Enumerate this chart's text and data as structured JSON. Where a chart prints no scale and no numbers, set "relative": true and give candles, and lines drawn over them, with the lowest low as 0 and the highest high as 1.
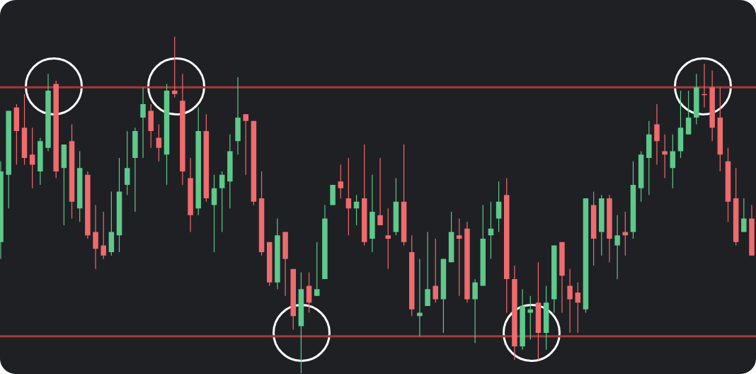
{
  "chart_data": {
    "type": "candlestick",
    "relative": true,
    "categories": [
      null,
      null,
      null,
      null,
      null,
      null,
      null,
      null,
      null,
      null,
      null,
      null,
      null,
      null,
      null,
      null,
      null,
      null,
      null,
      null,
      null,
      null,
      null,
      null,
      null,
      null,
      null,
      null,
      null,
      null,
      null,
      null,
      null,
      null,
      null,
      null,
      null,
      null,
      null,
      null,
      null,
      null,
      null,
      null,
      null,
      null,
      null,
      null,
      null,
      null,
      null,
      null,
      null,
      null,
      null,
      null,
      null,
      null,
      null,
      null,
      null,
      null,
      null,
      null,
      null,
      null,
      null,
      null,
      null,
      null,
      null,
      null,
      null,
      null,
      null,
      null,
      null,
      null,
      null,
      null,
      null,
      null,
      null,
      null,
      null,
      null,
      null,
      null,
      null,
      null,
      null,
      null,
      null,
      null,
      null,
      null
    ],
    "ohlc": [
      [
        0.39,
        0.63,
        0.34,
        0.6
      ],
      [
        0.59,
        0.78,
        0.49,
        0.78
      ],
      [
        0.79,
        0.8,
        0.62,
        0.72
      ],
      [
        0.73,
        0.83,
        0.62,
        0.64
      ],
      [
        0.65,
        0.73,
        0.55,
        0.62
      ],
      [
        0.6,
        0.7,
        0.56,
        0.69
      ],
      [
        0.67,
        0.89,
        0.66,
        0.84
      ],
      [
        0.86,
        0.87,
        0.58,
        0.6
      ],
      [
        0.61,
        0.68,
        0.44,
        0.68
      ],
      [
        0.69,
        0.74,
        0.46,
        0.51
      ],
      [
        0.49,
        0.66,
        0.45,
        0.61
      ],
      [
        0.59,
        0.6,
        0.4,
        0.41
      ],
      [
        0.42,
        0.5,
        0.31,
        0.37
      ],
      [
        0.38,
        0.48,
        0.34,
        0.35
      ],
      [
        0.36,
        0.54,
        0.35,
        0.42
      ],
      [
        0.41,
        0.64,
        0.36,
        0.54
      ],
      [
        0.56,
        0.72,
        0.53,
        0.61
      ],
      [
        0.64,
        0.73,
        0.48,
        0.72
      ],
      [
        0.76,
        0.85,
        0.64,
        0.8
      ],
      [
        0.78,
        0.8,
        0.67,
        0.72
      ],
      [
        0.7,
        0.74,
        0.63,
        0.67
      ],
      [
        0.65,
        0.86,
        0.56,
        0.84
      ],
      [
        0.84,
        1.0,
        0.82,
        0.83
      ],
      [
        0.81,
        0.89,
        0.56,
        0.6
      ],
      [
        0.58,
        0.64,
        0.42,
        0.47
      ],
      [
        0.49,
        0.79,
        0.47,
        0.72
      ],
      [
        0.72,
        0.77,
        0.51,
        0.52
      ],
      [
        0.5,
        0.59,
        0.36,
        0.55
      ],
      [
        0.55,
        0.6,
        0.42,
        0.59
      ],
      [
        0.57,
        0.71,
        0.49,
        0.66
      ],
      [
        0.69,
        0.88,
        0.65,
        0.76
      ],
      [
        0.77,
        0.77,
        0.59,
        0.75
      ],
      [
        0.75,
        0.75,
        0.5,
        0.51
      ],
      [
        0.52,
        0.6,
        0.35,
        0.36
      ],
      [
        0.39,
        0.39,
        0.26,
        0.27
      ],
      [
        0.27,
        0.46,
        0.25,
        0.41
      ],
      [
        0.42,
        0.42,
        0.23,
        0.34
      ],
      [
        0.31,
        0.31,
        0.13,
        0.17
      ],
      [
        0.14,
        0.3,
        0.0,
        0.25
      ],
      [
        0.26,
        0.3,
        0.18,
        0.21
      ],
      [
        0.23,
        0.39,
        0.23,
        0.25
      ],
      [
        0.28,
        0.5,
        0.28,
        0.46
      ],
      [
        0.5,
        0.56,
        0.5,
        0.56
      ],
      [
        0.57,
        0.62,
        0.52,
        0.55
      ],
      [
        0.52,
        0.64,
        0.41,
        0.49
      ],
      [
        0.49,
        0.53,
        0.44,
        0.51
      ],
      [
        0.52,
        0.68,
        0.38,
        0.39
      ],
      [
        0.4,
        0.59,
        0.36,
        0.48
      ],
      [
        0.47,
        0.64,
        0.44,
        0.44
      ],
      [
        0.41,
        0.49,
        0.31,
        0.4
      ],
      [
        0.42,
        0.58,
        0.41,
        0.51
      ],
      [
        0.51,
        0.68,
        0.38,
        0.39
      ],
      [
        0.36,
        0.41,
        0.17,
        0.19
      ],
      [
        0.17,
        0.34,
        0.11,
        0.18
      ],
      [
        0.2,
        0.42,
        0.2,
        0.25
      ],
      [
        0.26,
        0.4,
        0.21,
        0.22
      ],
      [
        0.22,
        0.34,
        0.12,
        0.34
      ],
      [
        0.33,
        0.48,
        0.33,
        0.42
      ],
      [
        0.41,
        0.46,
        0.23,
        0.4
      ],
      [
        0.43,
        0.45,
        0.21,
        0.22
      ],
      [
        0.22,
        0.28,
        0.09,
        0.27
      ],
      [
        0.26,
        0.5,
        0.26,
        0.4
      ],
      [
        0.41,
        0.51,
        0.34,
        0.43
      ],
      [
        0.46,
        0.57,
        0.42,
        0.51
      ],
      [
        0.53,
        0.58,
        0.18,
        0.28
      ],
      [
        0.28,
        0.32,
        0.04,
        0.08
      ],
      [
        0.08,
        0.25,
        0.07,
        0.2
      ],
      [
        0.18,
        0.23,
        0.1,
        0.19
      ],
      [
        0.21,
        0.33,
        0.04,
        0.12
      ],
      [
        0.12,
        0.26,
        0.07,
        0.21
      ],
      [
        0.22,
        0.38,
        0.18,
        0.38
      ],
      [
        0.39,
        0.39,
        0.18,
        0.29
      ],
      [
        0.26,
        0.31,
        0.12,
        0.22
      ],
      [
        0.24,
        0.27,
        0.12,
        0.21
      ],
      [
        0.19,
        0.52,
        0.18,
        0.52
      ],
      [
        0.5,
        0.54,
        0.32,
        0.4
      ],
      [
        0.42,
        0.53,
        0.35,
        0.52
      ],
      [
        0.52,
        0.53,
        0.33,
        0.4
      ],
      [
        0.38,
        0.47,
        0.28,
        0.41
      ],
      [
        0.42,
        0.48,
        0.35,
        0.41
      ],
      [
        0.42,
        0.63,
        0.4,
        0.56
      ],
      [
        0.55,
        0.66,
        0.51,
        0.65
      ],
      [
        0.64,
        0.75,
        0.53,
        0.71
      ],
      [
        0.74,
        0.8,
        0.62,
        0.69
      ],
      [
        0.66,
        0.71,
        0.58,
        0.65
      ],
      [
        0.61,
        0.71,
        0.55,
        0.66
      ],
      [
        0.66,
        0.84,
        0.64,
        0.73
      ],
      [
        0.71,
        0.84,
        0.71,
        0.76
      ],
      [
        0.76,
        0.89,
        0.74,
        0.85
      ],
      [
        0.83,
        0.92,
        0.79,
        0.83
      ],
      [
        0.85,
        0.9,
        0.69,
        0.73
      ],
      [
        0.76,
        0.85,
        0.6,
        0.65
      ],
      [
        0.63,
        0.67,
        0.45,
        0.51
      ],
      [
        0.52,
        0.61,
        0.38,
        0.39
      ],
      [
        0.42,
        0.52,
        0.42,
        0.46
      ],
      [
        0.46,
        0.5,
        0.35,
        0.35
      ]
    ],
    "colors": [
      "#5ec98b",
      "#5ec98b",
      "#ee6b6e",
      "#ee6b6e",
      "#ee6b6e",
      "#5ec98b",
      "#5ec98b",
      "#ee6b6e",
      "#5ec98b",
      "#ee6b6e",
      "#5ec98b",
      "#ee6b6e",
      "#ee6b6e",
      "#ee6b6e",
      "#5ec98b",
      "#5ec98b",
      "#5ec98b",
      "#5ec98b",
      "#5ec98b",
      "#ee6b6e",
      "#ee6b6e",
      "#5ec98b",
      "#ee6b6e",
      "#ee6b6e",
      "#ee6b6e",
      "#5ec98b",
      "#ee6b6e",
      "#5ec98b",
      "#5ec98b",
      "#5ec98b",
      "#5ec98b",
      "#ee6b6e",
      "#ee6b6e",
      "#ee6b6e",
      "#ee6b6e",
      "#5ec98b",
      "#ee6b6e",
      "#ee6b6e",
      "#5ec98b",
      "#ee6b6e",
      "#5ec98b",
      "#5ec98b",
      "#5ec98b",
      "#ee6b6e",
      "#ee6b6e",
      "#5ec98b",
      "#ee6b6e",
      "#5ec98b",
      "#ee6b6e",
      "#ee6b6e",
      "#5ec98b",
      "#ee6b6e",
      "#ee6b6e",
      "#5ec98b",
      "#5ec98b",
      "#ee6b6e",
      "#5ec98b",
      "#5ec98b",
      "#ee6b6e",
      "#ee6b6e",
      "#5ec98b",
      "#5ec98b",
      "#5ec98b",
      "#5ec98b",
      "#ee6b6e",
      "#ee6b6e",
      "#5ec98b",
      "#5ec98b",
      "#ee6b6e",
      "#5ec98b",
      "#5ec98b",
      "#ee6b6e",
      "#ee6b6e",
      "#ee6b6e",
      "#5ec98b",
      "#ee6b6e",
      "#5ec98b",
      "#ee6b6e",
      "#5ec98b",
      "#ee6b6e",
      "#5ec98b",
      "#5ec98b",
      "#5ec98b",
      "#ee6b6e",
      "#ee6b6e",
      "#5ec98b",
      "#5ec98b",
      "#5ec98b",
      "#5ec98b",
      "#ee6b6e",
      "#ee6b6e",
      "#ee6b6e",
      "#ee6b6e",
      "#ee6b6e",
      "#5ec98b",
      "#ee6b6e"
    ],
    "ref_lines": [
      {
        "axis": "y",
        "value": 0.85,
        "color": "#a33a3a"
      },
      {
        "axis": "y",
        "value": 0.11,
        "color": "#a33a3a"
      }
    ]
  }
}
